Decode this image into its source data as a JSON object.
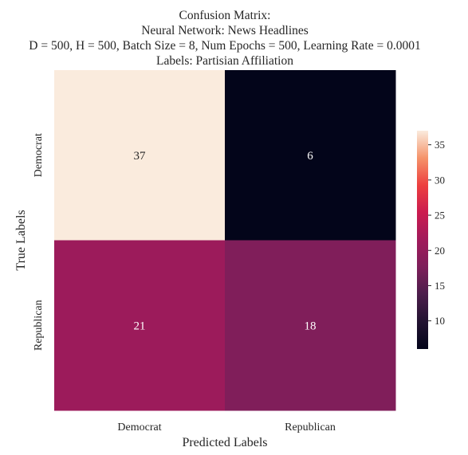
{
  "chart_data": {
    "type": "heatmap",
    "title_lines": [
      "Confusion Matrix:",
      "Neural Network: News Headlines",
      "D = 500, H = 500, Batch Size = 8, Num Epochs = 500, Learning Rate = 0.0001",
      "Labels: Partisian Affiliation"
    ],
    "xlabel": "Predicted Labels",
    "ylabel": "True Labels",
    "x_categories": [
      "Democrat",
      "Republican"
    ],
    "y_categories": [
      "Democrat",
      "Republican"
    ],
    "values": [
      [
        37,
        6
      ],
      [
        21,
        18
      ]
    ],
    "colormap": "rocket",
    "colorbar": {
      "vmin": 6,
      "vmax": 37,
      "ticks": [
        10,
        15,
        20,
        25,
        30,
        35
      ],
      "placement": "right"
    },
    "grid": false,
    "annotations": true
  }
}
